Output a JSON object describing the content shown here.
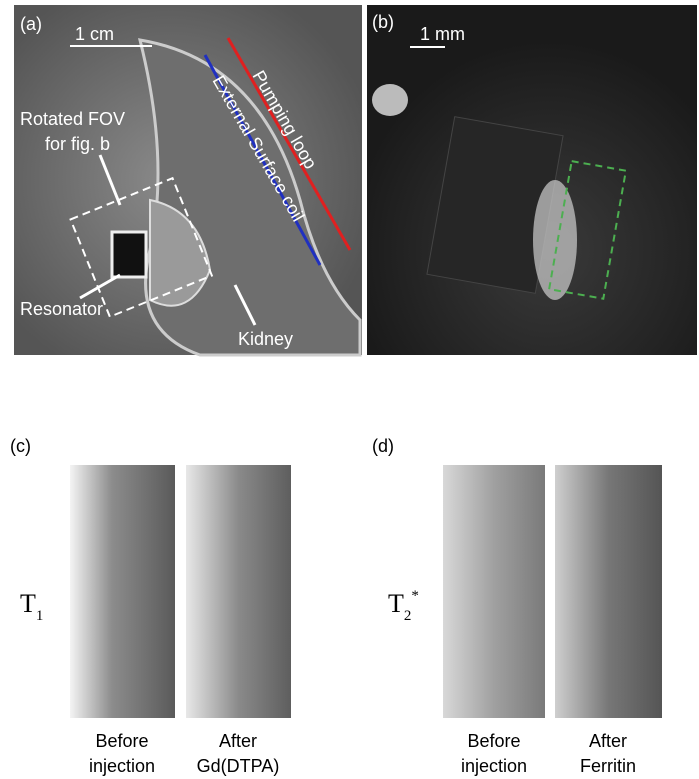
{
  "panels": [
    {
      "label": "(a)",
      "scale_bar": "1 cm",
      "annotations": {
        "fov": [
          "Rotated FOV",
          "for fig. b"
        ],
        "resonator": "Resonator",
        "kidney": "Kidney",
        "pumping_loop": "Pumping loop",
        "surface_coil": "External Surface coil"
      }
    },
    {
      "label": "(b)",
      "scale_bar": "1 mm"
    },
    {
      "label": "(c)",
      "row_label": {
        "symbol": "T",
        "subscript": "1"
      },
      "captions": [
        [
          "Before",
          "injection"
        ],
        [
          "After",
          "Gd(DTPA)"
        ]
      ]
    },
    {
      "label": "(d)",
      "row_label": {
        "symbol": "T",
        "subscript": "2",
        "superscript": "*"
      },
      "captions": [
        [
          "Before",
          "injection"
        ],
        [
          "After",
          "Ferritin"
        ]
      ]
    }
  ]
}
